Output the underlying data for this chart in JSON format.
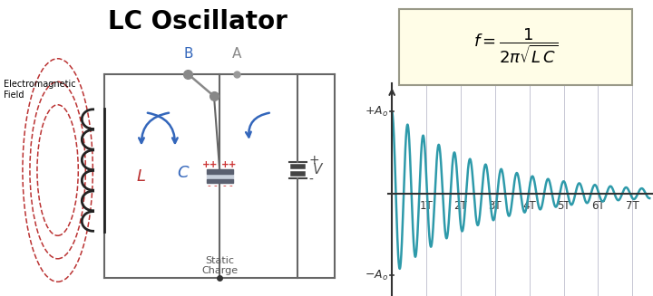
{
  "title": "LC Oscillator",
  "title_fontsize": 20,
  "title_fontweight": "bold",
  "fig_bg": "#ffffff",
  "graph_bg": "#ffffff",
  "grid_color": "#bbbbcc",
  "wave_color": "#2e9aaa",
  "wave_lw": 1.8,
  "decay": 0.38,
  "wave_freq": 2.2,
  "x_ticks": [
    "1T",
    "2T",
    "3T",
    "4T",
    "5T",
    "6T",
    "7T"
  ],
  "formula_bg": "#fffde7",
  "formula_border": "#999988",
  "circuit_line_color": "#666666",
  "inductor_color": "#222222",
  "em_field_color": "#bb3333",
  "arrow_color": "#3366bb",
  "label_B_color": "#3366bb",
  "label_A_color": "#888888",
  "label_L_color": "#bb3333",
  "label_C_color": "#3366bb",
  "label_V_color": "#555555",
  "label_SC_color": "#555555",
  "cap_charge_color": "#cc3333",
  "plus_minus_color": "#444444"
}
